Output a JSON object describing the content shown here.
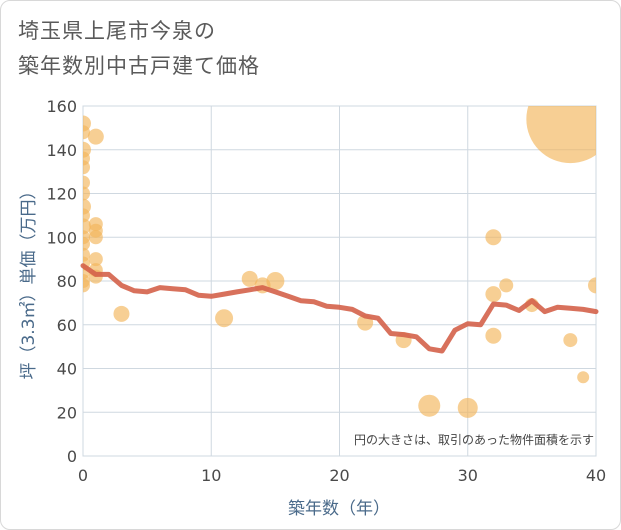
{
  "chart_data": {
    "type": "scatter",
    "title_lines": [
      "埼玉県上尾市今泉の",
      "築年数別中古戸建て価格"
    ],
    "xlabel": "築年数（年）",
    "ylabel": "坪（3.3㎡）単価（万円）",
    "xlim": [
      0,
      40
    ],
    "ylim": [
      0,
      160
    ],
    "x_ticks": [
      0,
      10,
      20,
      30,
      40
    ],
    "y_ticks": [
      0,
      20,
      40,
      60,
      80,
      100,
      120,
      140,
      160
    ],
    "grid": true,
    "note": "円の大きさは、取引のあった物件面積を示す",
    "colors": {
      "bubble": "#f2b65a",
      "line": "#d4624a",
      "grid": "#cfd8e0"
    },
    "series": [
      {
        "type": "bubble",
        "points": [
          {
            "x": 0,
            "y": 152,
            "r": 8
          },
          {
            "x": 0,
            "y": 148,
            "r": 7
          },
          {
            "x": 0,
            "y": 140,
            "r": 8
          },
          {
            "x": 0,
            "y": 136,
            "r": 7
          },
          {
            "x": 0,
            "y": 132,
            "r": 7
          },
          {
            "x": 0,
            "y": 125,
            "r": 7
          },
          {
            "x": 0,
            "y": 120,
            "r": 7
          },
          {
            "x": 0,
            "y": 114,
            "r": 8
          },
          {
            "x": 0,
            "y": 110,
            "r": 7
          },
          {
            "x": 0,
            "y": 105,
            "r": 8
          },
          {
            "x": 0,
            "y": 100,
            "r": 7
          },
          {
            "x": 0,
            "y": 97,
            "r": 7
          },
          {
            "x": 0,
            "y": 92,
            "r": 7
          },
          {
            "x": 0,
            "y": 88,
            "r": 7
          },
          {
            "x": 0,
            "y": 84,
            "r": 7
          },
          {
            "x": 0,
            "y": 80,
            "r": 7
          },
          {
            "x": 0,
            "y": 78,
            "r": 7
          },
          {
            "x": 1,
            "y": 146,
            "r": 8
          },
          {
            "x": 1,
            "y": 106,
            "r": 7
          },
          {
            "x": 1,
            "y": 103,
            "r": 7
          },
          {
            "x": 1,
            "y": 100,
            "r": 7
          },
          {
            "x": 1,
            "y": 90,
            "r": 7
          },
          {
            "x": 1,
            "y": 85,
            "r": 7
          },
          {
            "x": 1,
            "y": 82,
            "r": 7
          },
          {
            "x": 3,
            "y": 65,
            "r": 8
          },
          {
            "x": 11,
            "y": 63,
            "r": 9
          },
          {
            "x": 13,
            "y": 81,
            "r": 8
          },
          {
            "x": 14,
            "y": 78,
            "r": 8
          },
          {
            "x": 15,
            "y": 80,
            "r": 9
          },
          {
            "x": 22,
            "y": 61,
            "r": 8
          },
          {
            "x": 25,
            "y": 53,
            "r": 8
          },
          {
            "x": 27,
            "y": 23,
            "r": 11
          },
          {
            "x": 30,
            "y": 22,
            "r": 10
          },
          {
            "x": 32,
            "y": 100,
            "r": 8
          },
          {
            "x": 32,
            "y": 74,
            "r": 8
          },
          {
            "x": 32,
            "y": 55,
            "r": 8
          },
          {
            "x": 33,
            "y": 78,
            "r": 7
          },
          {
            "x": 35,
            "y": 69,
            "r": 7
          },
          {
            "x": 38,
            "y": 154,
            "r": 44
          },
          {
            "x": 38,
            "y": 53,
            "r": 7
          },
          {
            "x": 39,
            "y": 36,
            "r": 6
          },
          {
            "x": 40,
            "y": 78,
            "r": 8
          }
        ]
      },
      {
        "type": "line",
        "x": [
          0,
          1,
          2,
          3,
          4,
          5,
          6,
          7,
          8,
          9,
          10,
          11,
          12,
          13,
          14,
          15,
          16,
          17,
          18,
          19,
          20,
          21,
          22,
          23,
          24,
          25,
          26,
          27,
          28,
          29,
          30,
          31,
          32,
          33,
          34,
          35,
          36,
          37,
          38,
          39,
          40
        ],
        "y": [
          87,
          83,
          83,
          78,
          75.5,
          75,
          77,
          76.5,
          76,
          73.5,
          73,
          74,
          75,
          76,
          77,
          75,
          73,
          71,
          70.5,
          68.5,
          68,
          67,
          64,
          63,
          56,
          55.5,
          54.5,
          49,
          48,
          57.5,
          60.5,
          60,
          69.5,
          69,
          66.5,
          71,
          66,
          68,
          67.5,
          67,
          66
        ]
      }
    ]
  }
}
